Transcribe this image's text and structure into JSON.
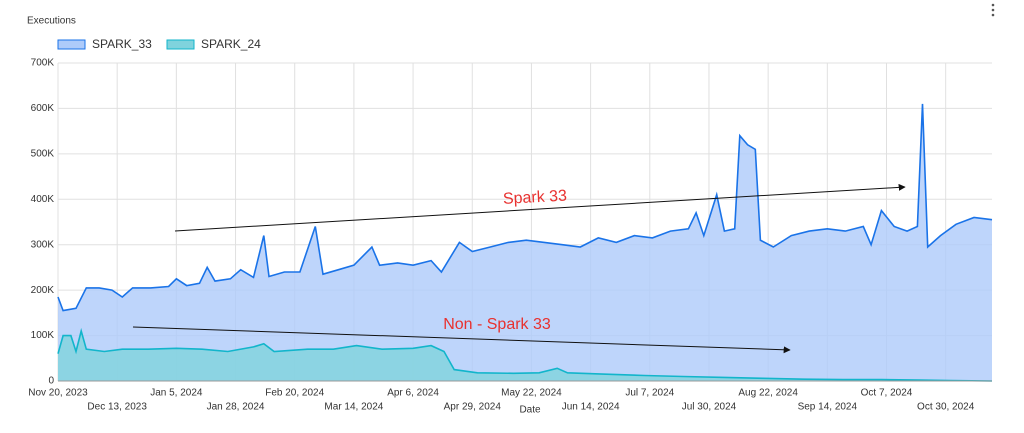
{
  "chart_data": {
    "type": "area",
    "title": "Executions",
    "x_label": "Date",
    "annotations": [
      {
        "text": "Spark 33"
      },
      {
        "text": "Non - Spark 33"
      }
    ],
    "xlim": [
      "2023-11-20",
      "2024-11-17"
    ],
    "xticks": [
      {
        "value": "2023-11-20",
        "label": "Nov 20, 2023"
      },
      {
        "value": "2023-12-13",
        "label": "Dec 13, 2023"
      },
      {
        "value": "2024-01-05",
        "label": "Jan 5, 2024"
      },
      {
        "value": "2024-01-28",
        "label": "Jan 28, 2024"
      },
      {
        "value": "2024-02-20",
        "label": "Feb 20, 2024"
      },
      {
        "value": "2024-03-14",
        "label": "Mar 14, 2024"
      },
      {
        "value": "2024-04-06",
        "label": "Apr 6, 2024"
      },
      {
        "value": "2024-04-29",
        "label": "Apr 29, 2024"
      },
      {
        "value": "2024-05-22",
        "label": "May 22, 2024"
      },
      {
        "value": "2024-06-14",
        "label": "Jun 14, 2024"
      },
      {
        "value": "2024-07-07",
        "label": "Jul 7, 2024"
      },
      {
        "value": "2024-07-30",
        "label": "Jul 30, 2024"
      },
      {
        "value": "2024-08-22",
        "label": "Aug 22, 2024"
      },
      {
        "value": "2024-09-14",
        "label": "Sep 14, 2024"
      },
      {
        "value": "2024-10-07",
        "label": "Oct 7, 2024"
      },
      {
        "value": "2024-10-30",
        "label": "Oct 30, 2024"
      }
    ],
    "ylim": [
      0,
      700000
    ],
    "yticks": [
      0,
      {
        "value": 100000,
        "label": "100K"
      },
      {
        "value": 200000,
        "label": "200K"
      },
      {
        "value": 300000,
        "label": "300K"
      },
      {
        "value": 400000,
        "label": "400K"
      },
      {
        "value": 500000,
        "label": "500K"
      },
      {
        "value": 600000,
        "label": "600K"
      },
      {
        "value": 700000,
        "label": "700K"
      }
    ],
    "grid": true,
    "series": [
      {
        "name": "SPARK_33",
        "color": "#1a73e8",
        "fill": "#aecbfa",
        "x": [
          "2023-11-20",
          "2023-11-22",
          "2023-11-27",
          "2023-12-01",
          "2023-12-06",
          "2023-12-11",
          "2023-12-15",
          "2023-12-19",
          "2023-12-26",
          "2024-01-02",
          "2024-01-05",
          "2024-01-09",
          "2024-01-14",
          "2024-01-17",
          "2024-01-20",
          "2024-01-26",
          "2024-01-30",
          "2024-02-04",
          "2024-02-08",
          "2024-02-10",
          "2024-02-16",
          "2024-02-22",
          "2024-02-28",
          "2024-03-02",
          "2024-03-08",
          "2024-03-14",
          "2024-03-21",
          "2024-03-24",
          "2024-03-31",
          "2024-04-06",
          "2024-04-13",
          "2024-04-17",
          "2024-04-24",
          "2024-04-29",
          "2024-05-06",
          "2024-05-13",
          "2024-05-20",
          "2024-05-27",
          "2024-06-03",
          "2024-06-10",
          "2024-06-17",
          "2024-06-24",
          "2024-07-01",
          "2024-07-08",
          "2024-07-15",
          "2024-07-22",
          "2024-07-25",
          "2024-07-28",
          "2024-08-02",
          "2024-08-05",
          "2024-08-09",
          "2024-08-11",
          "2024-08-14",
          "2024-08-17",
          "2024-08-19",
          "2024-08-24",
          "2024-08-31",
          "2024-09-07",
          "2024-09-14",
          "2024-09-21",
          "2024-09-28",
          "2024-10-01",
          "2024-10-05",
          "2024-10-10",
          "2024-10-15",
          "2024-10-19",
          "2024-10-21",
          "2024-10-23",
          "2024-10-28",
          "2024-11-03",
          "2024-11-10",
          "2024-11-17"
        ],
        "values": [
          185000,
          155000,
          160000,
          205000,
          205000,
          200000,
          185000,
          205000,
          205000,
          208000,
          225000,
          210000,
          215000,
          250000,
          220000,
          225000,
          245000,
          228000,
          320000,
          230000,
          240000,
          240000,
          340000,
          235000,
          245000,
          255000,
          295000,
          255000,
          260000,
          255000,
          265000,
          240000,
          305000,
          285000,
          295000,
          305000,
          310000,
          305000,
          300000,
          295000,
          315000,
          305000,
          320000,
          315000,
          330000,
          335000,
          370000,
          320000,
          410000,
          330000,
          335000,
          540000,
          520000,
          510000,
          310000,
          295000,
          320000,
          330000,
          335000,
          330000,
          340000,
          300000,
          375000,
          340000,
          330000,
          340000,
          610000,
          295000,
          320000,
          345000,
          360000,
          355000
        ]
      },
      {
        "name": "SPARK_24",
        "color": "#12b5cb",
        "fill": "#7fd3dd",
        "x": [
          "2023-11-20",
          "2023-11-22",
          "2023-11-25",
          "2023-11-27",
          "2023-11-29",
          "2023-12-01",
          "2023-12-08",
          "2023-12-15",
          "2023-12-25",
          "2024-01-05",
          "2024-01-15",
          "2024-01-25",
          "2024-02-04",
          "2024-02-08",
          "2024-02-12",
          "2024-02-25",
          "2024-03-06",
          "2024-03-15",
          "2024-03-25",
          "2024-04-06",
          "2024-04-13",
          "2024-04-18",
          "2024-04-22",
          "2024-05-01",
          "2024-05-15",
          "2024-05-25",
          "2024-06-01",
          "2024-06-05",
          "2024-06-20",
          "2024-07-05",
          "2024-07-20",
          "2024-08-05",
          "2024-08-20",
          "2024-09-05",
          "2024-09-20",
          "2024-10-05",
          "2024-10-20",
          "2024-11-01",
          "2024-11-17"
        ],
        "values": [
          60000,
          100000,
          100000,
          65000,
          110000,
          70000,
          65000,
          70000,
          70000,
          72000,
          70000,
          65000,
          75000,
          82000,
          65000,
          70000,
          70000,
          78000,
          70000,
          72000,
          78000,
          65000,
          25000,
          18000,
          17000,
          18000,
          28000,
          18000,
          15000,
          12000,
          10000,
          8000,
          6000,
          4000,
          3000,
          3000,
          2000,
          1000,
          0
        ]
      }
    ]
  }
}
